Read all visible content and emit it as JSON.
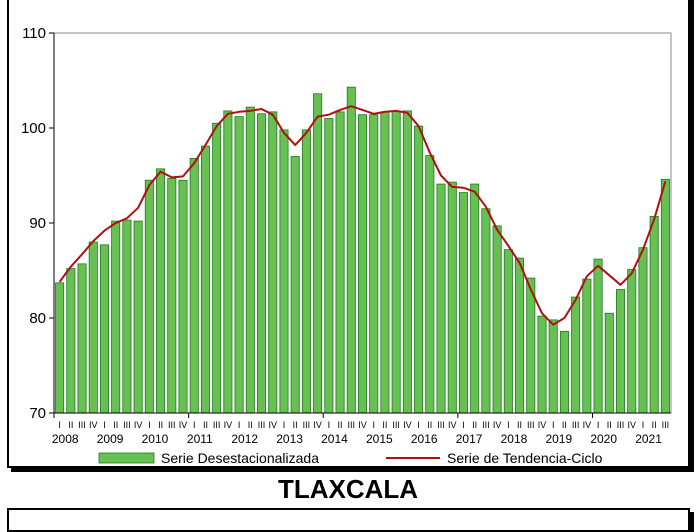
{
  "title": "TLAXCALA",
  "chart_data": {
    "type": "bar",
    "title": "TLAXCALA",
    "xlabel": "",
    "ylabel": "",
    "ylim": [
      70,
      110
    ],
    "yticks": [
      "70",
      "80",
      "90",
      "100",
      "110"
    ],
    "years": [
      "2008",
      "2009",
      "2010",
      "2011",
      "2012",
      "2013",
      "2014",
      "2015",
      "2016",
      "2017",
      "2018",
      "2019",
      "2020",
      "2021"
    ],
    "quarter_labels": [
      "I",
      "II",
      "III",
      "IV"
    ],
    "grid": false,
    "legend_position": "bottom",
    "series": [
      {
        "name": "Serie Desestacionalizada",
        "type": "bar",
        "color": "#66c052",
        "values": [
          83.7,
          85.2,
          85.7,
          88.0,
          87.7,
          90.2,
          90.3,
          90.2,
          94.5,
          95.7,
          94.7,
          94.5,
          96.8,
          98.1,
          100.5,
          101.8,
          101.2,
          102.2,
          101.5,
          101.7,
          99.8,
          97.0,
          99.8,
          103.6,
          101.0,
          101.7,
          104.3,
          101.4,
          101.4,
          101.7,
          101.8,
          101.8,
          100.2,
          97.1,
          94.1,
          94.3,
          93.2,
          94.1,
          91.5,
          89.7,
          87.2,
          86.3,
          84.2,
          80.2,
          79.8,
          78.6,
          82.2,
          84.1,
          86.2,
          80.5,
          83.0,
          85.1,
          87.4,
          90.7,
          94.6
        ]
      },
      {
        "name": "Serie de Tendencia-Ciclo",
        "type": "line",
        "color": "#b01010",
        "values": [
          83.8,
          85.4,
          86.7,
          88.1,
          89.2,
          90.0,
          90.5,
          91.6,
          94.0,
          95.4,
          94.8,
          94.9,
          96.3,
          98.2,
          100.2,
          101.5,
          101.7,
          101.8,
          102.0,
          101.4,
          99.5,
          98.2,
          99.5,
          101.2,
          101.4,
          101.9,
          102.3,
          101.9,
          101.5,
          101.7,
          101.8,
          101.6,
          100.2,
          97.4,
          95.0,
          93.8,
          93.7,
          93.3,
          91.7,
          89.3,
          87.6,
          85.8,
          83.0,
          80.5,
          79.3,
          80.0,
          81.9,
          84.4,
          85.5,
          84.5,
          83.5,
          84.7,
          87.2,
          90.4,
          94.4
        ]
      }
    ]
  }
}
